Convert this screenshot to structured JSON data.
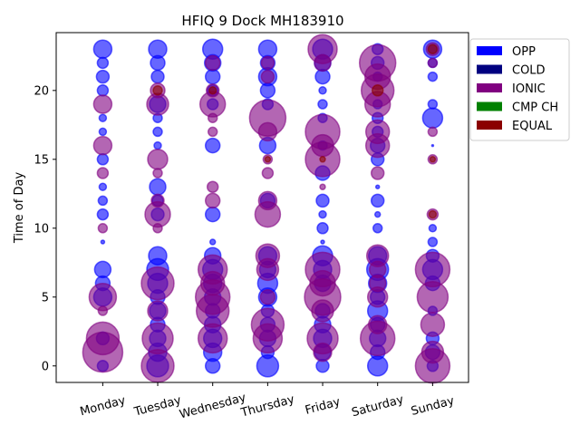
{
  "chart_data": {
    "type": "scatter",
    "title": "HFIQ 9 Dock MH183910",
    "xlabel": "",
    "ylabel": "Time of Day",
    "categories": [
      "Monday",
      "Tuesday",
      "Wednesday",
      "Thursday",
      "Friday",
      "Saturday",
      "Sunday"
    ],
    "ylim": [
      -1.2,
      24.2
    ],
    "yticks": [
      0,
      5,
      10,
      15,
      20
    ],
    "legend_position": "outside-right",
    "legend": [
      {
        "name": "OPP",
        "color": "#0000ff"
      },
      {
        "name": "COLD",
        "color": "#000080"
      },
      {
        "name": "IONIC",
        "color": "#800080"
      },
      {
        "name": "CMP CH",
        "color": "#008000"
      },
      {
        "name": "EQUAL",
        "color": "#8b0000"
      }
    ],
    "series": [
      {
        "name": "OPP",
        "color": "#0000ff",
        "points": [
          [
            0,
            23,
            10
          ],
          [
            0,
            22,
            6
          ],
          [
            0,
            21,
            7
          ],
          [
            0,
            20,
            6
          ],
          [
            0,
            18,
            4
          ],
          [
            0,
            17,
            4
          ],
          [
            0,
            15,
            6
          ],
          [
            0,
            13,
            4
          ],
          [
            0,
            12,
            5
          ],
          [
            0,
            11,
            6
          ],
          [
            0,
            9,
            2
          ],
          [
            0,
            7,
            9
          ],
          [
            0,
            6,
            8
          ],
          [
            0,
            5,
            10
          ],
          [
            0,
            2,
            7
          ],
          [
            0,
            0,
            6
          ],
          [
            1,
            23,
            10
          ],
          [
            1,
            22,
            8
          ],
          [
            1,
            21,
            7
          ],
          [
            1,
            19,
            9
          ],
          [
            1,
            18,
            5
          ],
          [
            1,
            17,
            5
          ],
          [
            1,
            16,
            4
          ],
          [
            1,
            13,
            9
          ],
          [
            1,
            12,
            6
          ],
          [
            1,
            11,
            7
          ],
          [
            1,
            8,
            10
          ],
          [
            1,
            7,
            12
          ],
          [
            1,
            6,
            11
          ],
          [
            1,
            5,
            8
          ],
          [
            1,
            4,
            9
          ],
          [
            1,
            3,
            8
          ],
          [
            1,
            2,
            9
          ],
          [
            1,
            1,
            10
          ],
          [
            1,
            0,
            12
          ],
          [
            2,
            23,
            11
          ],
          [
            2,
            22,
            9
          ],
          [
            2,
            21,
            8
          ],
          [
            2,
            20,
            6
          ],
          [
            2,
            19,
            6
          ],
          [
            2,
            16,
            8
          ],
          [
            2,
            11,
            8
          ],
          [
            2,
            9,
            3
          ],
          [
            2,
            8,
            9
          ],
          [
            2,
            7,
            11
          ],
          [
            2,
            6,
            10
          ],
          [
            2,
            5,
            9
          ],
          [
            2,
            4,
            8
          ],
          [
            2,
            3,
            9
          ],
          [
            2,
            2,
            10
          ],
          [
            2,
            1,
            10
          ],
          [
            2,
            0,
            8
          ],
          [
            3,
            23,
            10
          ],
          [
            3,
            22,
            8
          ],
          [
            3,
            21,
            10
          ],
          [
            3,
            20,
            8
          ],
          [
            3,
            19,
            6
          ],
          [
            3,
            16,
            9
          ],
          [
            3,
            12,
            8
          ],
          [
            3,
            8,
            10
          ],
          [
            3,
            7,
            9
          ],
          [
            3,
            6,
            11
          ],
          [
            3,
            5,
            10
          ],
          [
            3,
            4,
            7
          ],
          [
            3,
            3,
            8
          ],
          [
            3,
            2,
            9
          ],
          [
            3,
            1,
            7
          ],
          [
            3,
            0,
            12
          ],
          [
            4,
            23,
            11
          ],
          [
            4,
            22,
            9
          ],
          [
            4,
            21,
            8
          ],
          [
            4,
            20,
            4
          ],
          [
            4,
            19,
            5
          ],
          [
            4,
            18,
            5
          ],
          [
            4,
            16,
            5
          ],
          [
            4,
            14,
            8
          ],
          [
            4,
            12,
            7
          ],
          [
            4,
            11,
            4
          ],
          [
            4,
            10,
            6
          ],
          [
            4,
            9,
            2
          ],
          [
            4,
            8,
            11
          ],
          [
            4,
            7,
            10
          ],
          [
            4,
            6,
            9
          ],
          [
            4,
            4,
            8
          ],
          [
            4,
            3,
            9
          ],
          [
            4,
            2,
            10
          ],
          [
            4,
            1,
            9
          ],
          [
            4,
            0,
            7
          ],
          [
            5,
            23,
            6
          ],
          [
            5,
            22,
            7
          ],
          [
            5,
            21,
            5
          ],
          [
            5,
            19,
            5
          ],
          [
            5,
            18,
            6
          ],
          [
            5,
            17,
            6
          ],
          [
            5,
            16,
            8
          ],
          [
            5,
            15,
            7
          ],
          [
            5,
            13,
            2
          ],
          [
            5,
            12,
            7
          ],
          [
            5,
            11,
            3
          ],
          [
            5,
            10,
            5
          ],
          [
            5,
            8,
            10
          ],
          [
            5,
            7,
            12
          ],
          [
            5,
            6,
            10
          ],
          [
            5,
            5,
            8
          ],
          [
            5,
            4,
            11
          ],
          [
            5,
            3,
            8
          ],
          [
            5,
            2,
            9
          ],
          [
            5,
            1,
            8
          ],
          [
            5,
            0,
            11
          ],
          [
            6,
            23,
            10
          ],
          [
            6,
            22,
            5
          ],
          [
            6,
            21,
            5
          ],
          [
            6,
            19,
            5
          ],
          [
            6,
            18,
            11
          ],
          [
            6,
            16,
            1
          ],
          [
            6,
            10,
            4
          ],
          [
            6,
            9,
            5
          ],
          [
            6,
            8,
            7
          ],
          [
            6,
            7,
            11
          ],
          [
            6,
            6,
            8
          ],
          [
            6,
            4,
            5
          ],
          [
            6,
            2,
            7
          ],
          [
            6,
            1,
            8
          ],
          [
            6,
            0,
            6
          ]
        ]
      },
      {
        "name": "IONIC",
        "color": "#800080",
        "points": [
          [
            0,
            19,
            10
          ],
          [
            0,
            16,
            10
          ],
          [
            0,
            14,
            6
          ],
          [
            0,
            10,
            5
          ],
          [
            0,
            5,
            15
          ],
          [
            0,
            4,
            5
          ],
          [
            0,
            2,
            18
          ],
          [
            0,
            1,
            22
          ],
          [
            1,
            20,
            8
          ],
          [
            1,
            19,
            12
          ],
          [
            1,
            15,
            11
          ],
          [
            1,
            14,
            5
          ],
          [
            1,
            12,
            7
          ],
          [
            1,
            11,
            14
          ],
          [
            1,
            10,
            5
          ],
          [
            1,
            6,
            18
          ],
          [
            1,
            4,
            11
          ],
          [
            1,
            2,
            17
          ],
          [
            1,
            0,
            18
          ],
          [
            2,
            22,
            8
          ],
          [
            2,
            20,
            7
          ],
          [
            2,
            19,
            14
          ],
          [
            2,
            18,
            5
          ],
          [
            2,
            17,
            5
          ],
          [
            2,
            13,
            6
          ],
          [
            2,
            12,
            8
          ],
          [
            2,
            7,
            16
          ],
          [
            2,
            6,
            13
          ],
          [
            2,
            5,
            19
          ],
          [
            2,
            4,
            18
          ],
          [
            2,
            2,
            16
          ],
          [
            3,
            22,
            7
          ],
          [
            3,
            21,
            7
          ],
          [
            3,
            18,
            20
          ],
          [
            3,
            17,
            10
          ],
          [
            3,
            15,
            5
          ],
          [
            3,
            14,
            6
          ],
          [
            3,
            12,
            10
          ],
          [
            3,
            11,
            14
          ],
          [
            3,
            8,
            13
          ],
          [
            3,
            7,
            12
          ],
          [
            3,
            5,
            8
          ],
          [
            3,
            3,
            18
          ],
          [
            3,
            2,
            16
          ],
          [
            4,
            23,
            16
          ],
          [
            4,
            22,
            9
          ],
          [
            4,
            17,
            19
          ],
          [
            4,
            16,
            12
          ],
          [
            4,
            15,
            19
          ],
          [
            4,
            13,
            3
          ],
          [
            4,
            7,
            19
          ],
          [
            4,
            6,
            14
          ],
          [
            4,
            5,
            20
          ],
          [
            4,
            4,
            12
          ],
          [
            4,
            2,
            17
          ],
          [
            4,
            1,
            10
          ],
          [
            5,
            22,
            20
          ],
          [
            5,
            21,
            14
          ],
          [
            5,
            20,
            18
          ],
          [
            5,
            19,
            14
          ],
          [
            5,
            17,
            13
          ],
          [
            5,
            16,
            13
          ],
          [
            5,
            14,
            7
          ],
          [
            5,
            8,
            12
          ],
          [
            5,
            7,
            9
          ],
          [
            5,
            6,
            9
          ],
          [
            5,
            5,
            11
          ],
          [
            5,
            3,
            10
          ],
          [
            5,
            2,
            19
          ],
          [
            6,
            23,
            7
          ],
          [
            6,
            22,
            5
          ],
          [
            6,
            17,
            5
          ],
          [
            6,
            15,
            5
          ],
          [
            6,
            11,
            6
          ],
          [
            6,
            7,
            19
          ],
          [
            6,
            5,
            17
          ],
          [
            6,
            3,
            13
          ],
          [
            6,
            1,
            12
          ],
          [
            6,
            0,
            19
          ]
        ]
      },
      {
        "name": "EQUAL",
        "color": "#8b0000",
        "points": [
          [
            6,
            23,
            5
          ],
          [
            6,
            15,
            3
          ],
          [
            6,
            11,
            4
          ],
          [
            1,
            20,
            5
          ],
          [
            2,
            20,
            4
          ],
          [
            3,
            15,
            3
          ],
          [
            4,
            15,
            3
          ],
          [
            5,
            20,
            6
          ]
        ]
      }
    ]
  },
  "colors": {
    "axis": "#000000",
    "background": "#ffffff"
  }
}
